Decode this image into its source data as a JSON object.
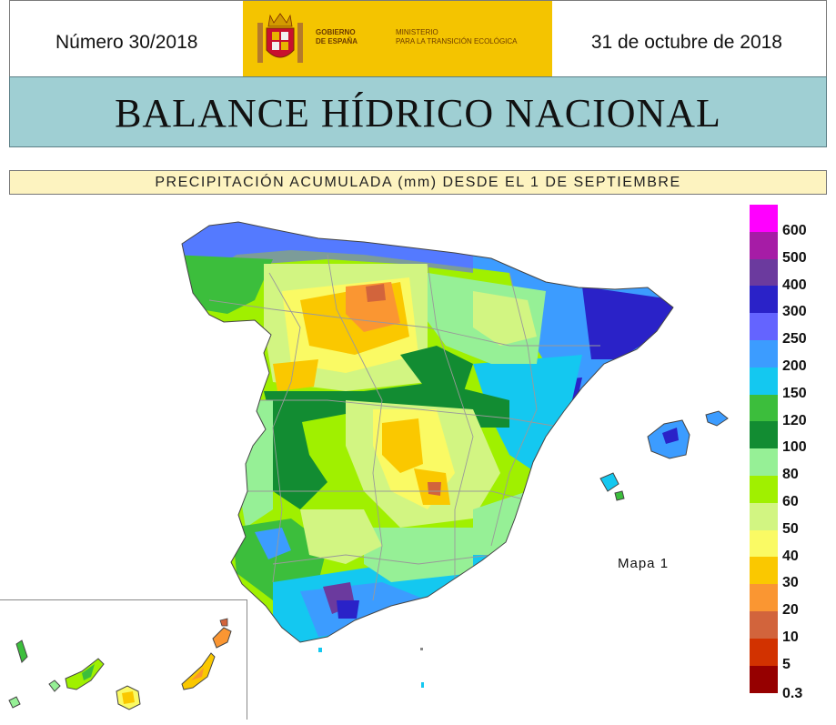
{
  "header": {
    "issue_number": "Número 30/2018",
    "date": "31 de octubre de 2018",
    "gov_line1": "GOBIERNO",
    "gov_line2": "DE ESPAÑA",
    "ministry_line1": "MINISTERIO",
    "ministry_line2": "PARA LA TRANSICIÓN ECOLÓGICA"
  },
  "title": "BALANCE HÍDRICO NACIONAL",
  "subtitle": "PRECIPITACIÓN ACUMULADA (mm) DESDE EL 1 DE SEPTIEMBRE",
  "map": {
    "label": "Mapa 1"
  },
  "legend": {
    "items": [
      {
        "label": "600",
        "color": "#ff00ff"
      },
      {
        "label": "500",
        "color": "#a61ca6"
      },
      {
        "label": "400",
        "color": "#6b3a9e"
      },
      {
        "label": "300",
        "color": "#2a22c8"
      },
      {
        "label": "250",
        "color": "#6464ff"
      },
      {
        "label": "200",
        "color": "#3c9cff"
      },
      {
        "label": "150",
        "color": "#14c8f0"
      },
      {
        "label": "120",
        "color": "#3cbe3c"
      },
      {
        "label": "100",
        "color": "#128c32"
      },
      {
        "label": "80",
        "color": "#96f096"
      },
      {
        "label": "60",
        "color": "#a0f000"
      },
      {
        "label": "50",
        "color": "#d2f582"
      },
      {
        "label": "40",
        "color": "#fafa64"
      },
      {
        "label": "30",
        "color": "#fac800"
      },
      {
        "label": "20",
        "color": "#fa9632"
      },
      {
        "label": "10",
        "color": "#d2643c"
      },
      {
        "label": "5",
        "color": "#d23200"
      },
      {
        "label": "0.3",
        "color": "#960000"
      }
    ]
  }
}
